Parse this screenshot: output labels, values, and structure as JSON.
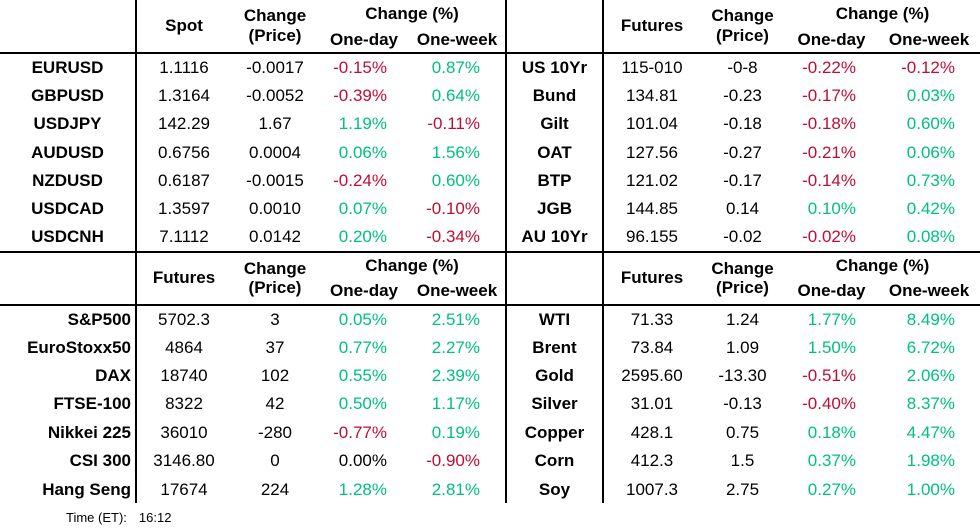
{
  "colors": {
    "positive": "#00C17D",
    "negative": "#C00D34",
    "neutral": "#000000",
    "grid_line": "#000000"
  },
  "labels": {
    "change_price_line1": "Change",
    "change_price_line2": "(Price)",
    "change_pct": "Change (%)",
    "one_day": "One-day",
    "one_week": "One-week"
  },
  "layout": {
    "top_left": "fx",
    "top_right": "bonds",
    "bottom_left": "equities",
    "bottom_right": "commodities"
  },
  "chart_data": [
    {
      "type": "table",
      "id": "fx",
      "value_header": "Spot",
      "label_align": "center",
      "columns": [
        "",
        "Spot",
        "Change (Price)",
        "Change (%) One-day",
        "Change (%) One-week"
      ],
      "rows": [
        {
          "label": "EURUSD",
          "value": "1.1116",
          "change": "-0.0017",
          "one_day": "-0.15%",
          "one_day_color": "negative",
          "one_week": "0.87%",
          "one_week_color": "positive"
        },
        {
          "label": "GBPUSD",
          "value": "1.3164",
          "change": "-0.0052",
          "one_day": "-0.39%",
          "one_day_color": "negative",
          "one_week": "0.64%",
          "one_week_color": "positive"
        },
        {
          "label": "USDJPY",
          "value": "142.29",
          "change": "1.67",
          "one_day": "1.19%",
          "one_day_color": "positive",
          "one_week": "-0.11%",
          "one_week_color": "negative"
        },
        {
          "label": "AUDUSD",
          "value": "0.6756",
          "change": "0.0004",
          "one_day": "0.06%",
          "one_day_color": "positive",
          "one_week": "1.56%",
          "one_week_color": "positive"
        },
        {
          "label": "NZDUSD",
          "value": "0.6187",
          "change": "-0.0015",
          "one_day": "-0.24%",
          "one_day_color": "negative",
          "one_week": "0.60%",
          "one_week_color": "positive"
        },
        {
          "label": "USDCAD",
          "value": "1.3597",
          "change": "0.0010",
          "one_day": "0.07%",
          "one_day_color": "positive",
          "one_week": "-0.10%",
          "one_week_color": "negative"
        },
        {
          "label": "USDCNH",
          "value": "7.1112",
          "change": "0.0142",
          "one_day": "0.20%",
          "one_day_color": "positive",
          "one_week": "-0.34%",
          "one_week_color": "negative"
        }
      ]
    },
    {
      "type": "table",
      "id": "bonds",
      "value_header": "Futures",
      "label_align": "center",
      "columns": [
        "",
        "Futures",
        "Change (Price)",
        "Change (%) One-day",
        "Change (%) One-week"
      ],
      "rows": [
        {
          "label": "US 10Yr",
          "value": "115-010",
          "change": "-0-8",
          "one_day": "-0.22%",
          "one_day_color": "negative",
          "one_week": "-0.12%",
          "one_week_color": "negative"
        },
        {
          "label": "Bund",
          "value": "134.81",
          "change": "-0.23",
          "one_day": "-0.17%",
          "one_day_color": "negative",
          "one_week": "0.03%",
          "one_week_color": "positive"
        },
        {
          "label": "Gilt",
          "value": "101.04",
          "change": "-0.18",
          "one_day": "-0.18%",
          "one_day_color": "negative",
          "one_week": "0.60%",
          "one_week_color": "positive"
        },
        {
          "label": "OAT",
          "value": "127.56",
          "change": "-0.27",
          "one_day": "-0.21%",
          "one_day_color": "negative",
          "one_week": "0.06%",
          "one_week_color": "positive"
        },
        {
          "label": "BTP",
          "value": "121.02",
          "change": "-0.17",
          "one_day": "-0.14%",
          "one_day_color": "negative",
          "one_week": "0.73%",
          "one_week_color": "positive"
        },
        {
          "label": "JGB",
          "value": "144.85",
          "change": "0.14",
          "one_day": "0.10%",
          "one_day_color": "positive",
          "one_week": "0.42%",
          "one_week_color": "positive"
        },
        {
          "label": "AU 10Yr",
          "value": "96.155",
          "change": "-0.02",
          "one_day": "-0.02%",
          "one_day_color": "negative",
          "one_week": "0.08%",
          "one_week_color": "positive"
        }
      ]
    },
    {
      "type": "table",
      "id": "equities",
      "value_header": "Futures",
      "label_align": "right",
      "columns": [
        "",
        "Futures",
        "Change (Price)",
        "Change (%) One-day",
        "Change (%) One-week"
      ],
      "rows": [
        {
          "label": "S&P500",
          "value": "5702.3",
          "change": "3",
          "one_day": "0.05%",
          "one_day_color": "positive",
          "one_week": "2.51%",
          "one_week_color": "positive"
        },
        {
          "label": "EuroStoxx50",
          "value": "4864",
          "change": "37",
          "one_day": "0.77%",
          "one_day_color": "positive",
          "one_week": "2.27%",
          "one_week_color": "positive"
        },
        {
          "label": "DAX",
          "value": "18740",
          "change": "102",
          "one_day": "0.55%",
          "one_day_color": "positive",
          "one_week": "2.39%",
          "one_week_color": "positive"
        },
        {
          "label": "FTSE-100",
          "value": "8322",
          "change": "42",
          "one_day": "0.50%",
          "one_day_color": "positive",
          "one_week": "1.17%",
          "one_week_color": "positive"
        },
        {
          "label": "Nikkei 225",
          "value": "36010",
          "change": "-280",
          "one_day": "-0.77%",
          "one_day_color": "negative",
          "one_week": "0.19%",
          "one_week_color": "positive"
        },
        {
          "label": "CSI 300",
          "value": "3146.80",
          "change": "0",
          "one_day": "0.00%",
          "one_day_color": "neutral",
          "one_week": "-0.90%",
          "one_week_color": "negative"
        },
        {
          "label": "Hang Seng",
          "value": "17674",
          "change": "224",
          "one_day": "1.28%",
          "one_day_color": "positive",
          "one_week": "2.81%",
          "one_week_color": "positive"
        }
      ]
    },
    {
      "type": "table",
      "id": "commodities",
      "value_header": "Futures",
      "label_align": "center",
      "columns": [
        "",
        "Futures",
        "Change (Price)",
        "Change (%) One-day",
        "Change (%) One-week"
      ],
      "rows": [
        {
          "label": "WTI",
          "value": "71.33",
          "change": "1.24",
          "one_day": "1.77%",
          "one_day_color": "positive",
          "one_week": "8.49%",
          "one_week_color": "positive"
        },
        {
          "label": "Brent",
          "value": "73.84",
          "change": "1.09",
          "one_day": "1.50%",
          "one_day_color": "positive",
          "one_week": "6.72%",
          "one_week_color": "positive"
        },
        {
          "label": "Gold",
          "value": "2595.60",
          "change": "-13.30",
          "one_day": "-0.51%",
          "one_day_color": "negative",
          "one_week": "2.06%",
          "one_week_color": "positive"
        },
        {
          "label": "Silver",
          "value": "31.01",
          "change": "-0.13",
          "one_day": "-0.40%",
          "one_day_color": "negative",
          "one_week": "8.37%",
          "one_week_color": "positive"
        },
        {
          "label": "Copper",
          "value": "428.1",
          "change": "0.75",
          "one_day": "0.18%",
          "one_day_color": "positive",
          "one_week": "4.47%",
          "one_week_color": "positive"
        },
        {
          "label": "Corn",
          "value": "412.3",
          "change": "1.5",
          "one_day": "0.37%",
          "one_day_color": "positive",
          "one_week": "1.98%",
          "one_week_color": "positive"
        },
        {
          "label": "Soy",
          "value": "1007.3",
          "change": "2.75",
          "one_day": "0.27%",
          "one_day_color": "positive",
          "one_week": "1.00%",
          "one_week_color": "positive"
        }
      ]
    }
  ],
  "footer": {
    "time_label": "Time (ET):",
    "time_value": "16:12"
  }
}
